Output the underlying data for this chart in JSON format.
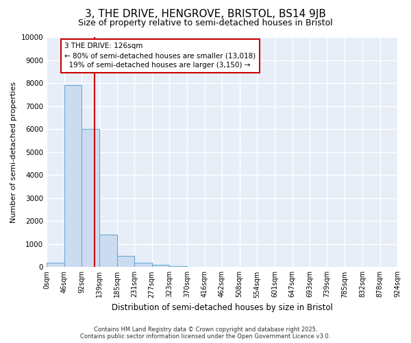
{
  "title": "3, THE DRIVE, HENGROVE, BRISTOL, BS14 9JB",
  "subtitle": "Size of property relative to semi-detached houses in Bristol",
  "xlabel": "Distribution of semi-detached houses by size in Bristol",
  "ylabel": "Number of semi-detached properties",
  "bar_values": [
    200,
    7900,
    6000,
    1400,
    500,
    200,
    100,
    50,
    0,
    0,
    0,
    0,
    0,
    0,
    0,
    0,
    0,
    0,
    0,
    0
  ],
  "bin_edges": [
    0,
    46,
    92,
    139,
    185,
    231,
    277,
    323,
    370,
    416,
    462,
    508,
    554,
    601,
    647,
    693,
    739,
    785,
    832,
    878,
    924
  ],
  "bin_labels": [
    "0sqm",
    "46sqm",
    "92sqm",
    "139sqm",
    "185sqm",
    "231sqm",
    "277sqm",
    "323sqm",
    "370sqm",
    "416sqm",
    "462sqm",
    "508sqm",
    "554sqm",
    "601sqm",
    "647sqm",
    "693sqm",
    "739sqm",
    "785sqm",
    "832sqm",
    "878sqm",
    "924sqm"
  ],
  "bar_color": "#ccdcf0",
  "bar_edge_color": "#6aaad4",
  "vline_x": 126,
  "vline_color": "#cc0000",
  "annotation_text": "3 THE DRIVE: 126sqm\n← 80% of semi-detached houses are smaller (13,018)\n  19% of semi-detached houses are larger (3,150) →",
  "annotation_box_color": "#ffffff",
  "annotation_box_edgecolor": "#cc0000",
  "ylim": [
    0,
    10000
  ],
  "yticks": [
    0,
    1000,
    2000,
    3000,
    4000,
    5000,
    6000,
    7000,
    8000,
    9000,
    10000
  ],
  "ax_background": "#e8eef8",
  "fig_background": "#ffffff",
  "grid_color": "#ffffff",
  "footer_line1": "Contains HM Land Registry data © Crown copyright and database right 2025.",
  "footer_line2": "Contains public sector information licensed under the Open Government Licence v3.0.",
  "title_fontsize": 11,
  "subtitle_fontsize": 9
}
